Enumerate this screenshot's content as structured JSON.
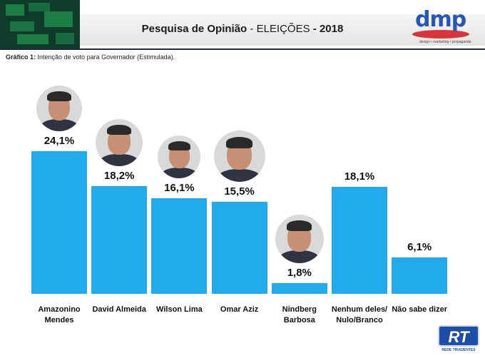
{
  "header": {
    "title_main": "Pesquisa de Opinião",
    "title_sep": " - ",
    "title_mid": "ELEIÇÕES",
    "title_year_sep": " - ",
    "title_year": "2018"
  },
  "logo": {
    "brand": "dmp",
    "tagline": "design • marketing • propaganda",
    "colors": {
      "blue": "#2457b8",
      "red": "#d8343a"
    }
  },
  "caption": {
    "label": "Gráfico 1:",
    "text": " Intenção de voto para Governador (Estimulada)."
  },
  "chart_data": {
    "type": "bar",
    "title": "Intenção de voto para Governador (Estimulada)",
    "categories": [
      "Amazonino\nMendes",
      "David Almeida",
      "Wilson Lima",
      "Omar Aziz",
      "Nindberg\nBarbosa",
      "Nenhum deles/\nNulo/Branco",
      "Não sabe dizer"
    ],
    "values": [
      24.1,
      18.2,
      16.1,
      15.5,
      1.8,
      18.1,
      6.1
    ],
    "value_labels": [
      "24,1%",
      "18,2%",
      "16,1%",
      "15,5%",
      "1,8%",
      "18,1%",
      "6,1%"
    ],
    "unit": "%",
    "has_photo": [
      true,
      true,
      true,
      true,
      true,
      false,
      false
    ],
    "bar_color": "#21aaec",
    "ylim": [
      0,
      30
    ],
    "grid": false,
    "legend": "none",
    "xlabel": "",
    "ylabel": ""
  },
  "watermark": {
    "mark": "RT",
    "text": "REDE TIRADENTES"
  }
}
